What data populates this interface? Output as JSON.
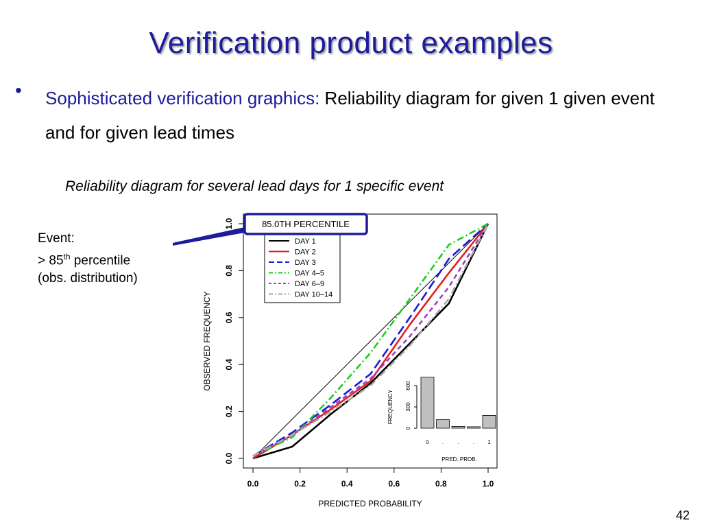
{
  "slide": {
    "title": "Verification product examples",
    "bullet_symbol": "•",
    "bullet_highlight": "Sophisticated verification graphics:",
    "bullet_text": " Reliability diagram for given 1 given event and for given lead times",
    "subcaption": "Reliability diagram for several lead days for 1 specific event",
    "event_label": "Event:",
    "event_threshold_prefix": "> 85",
    "event_threshold_sup": "th",
    "event_threshold_suffix": " percentile",
    "event_obs": "(obs. distribution)",
    "page_number": "42"
  },
  "chart_data": [
    {
      "type": "line",
      "title": "85.0TH PERCENTILE",
      "xlabel": "PREDICTED PROBABILITY",
      "ylabel": "OBSERVED FREQUENCY",
      "xlim": [
        0,
        1
      ],
      "ylim": [
        0,
        1
      ],
      "xticks": [
        "0.0",
        "0.2",
        "0.4",
        "0.6",
        "0.8",
        "1.0"
      ],
      "yticks": [
        "0.0",
        "0.2",
        "0.4",
        "0.6",
        "0.8",
        "1.0"
      ],
      "grid": false,
      "legend_position": "top-left",
      "diagonal": true,
      "x": [
        0.0,
        0.167,
        0.333,
        0.5,
        0.667,
        0.833,
        1.0
      ],
      "series": [
        {
          "name": "DAY  1",
          "color": "#000000",
          "dash": "solid",
          "values": [
            0.0,
            0.05,
            0.19,
            0.32,
            0.49,
            0.66,
            1.0
          ]
        },
        {
          "name": "DAY  2",
          "color": "#e02020",
          "dash": "solid",
          "values": [
            0.0,
            0.1,
            0.21,
            0.33,
            0.57,
            0.79,
            1.0
          ]
        },
        {
          "name": "DAY  3",
          "color": "#1a1ad6",
          "dash": "longdash",
          "values": [
            0.01,
            0.11,
            0.23,
            0.36,
            0.6,
            0.85,
            1.0
          ]
        },
        {
          "name": "DAY  4–5",
          "color": "#18d018",
          "dash": "dotdash",
          "values": [
            0.01,
            0.09,
            0.26,
            0.45,
            0.68,
            0.91,
            1.0
          ]
        },
        {
          "name": "DAY  6–9",
          "color": "#a040c0",
          "dash": "dash",
          "values": [
            0.01,
            0.1,
            0.22,
            0.34,
            0.52,
            0.73,
            1.0
          ]
        },
        {
          "name": "DAY 10–14",
          "color": "#aaaaaa",
          "dash": "dotdash",
          "values": [
            0.01,
            0.1,
            0.2,
            0.31,
            0.48,
            0.68,
            1.0
          ]
        }
      ]
    },
    {
      "type": "bar",
      "xlabel": "PRED. PROB.",
      "ylabel": "FREQUENCY",
      "categories": [
        "0",
        ".",
        ".",
        ".",
        "1"
      ],
      "values": [
        720,
        120,
        25,
        20,
        180
      ],
      "yticks": [
        "0",
        "300",
        "600"
      ],
      "ylim": [
        0,
        720
      ]
    }
  ]
}
